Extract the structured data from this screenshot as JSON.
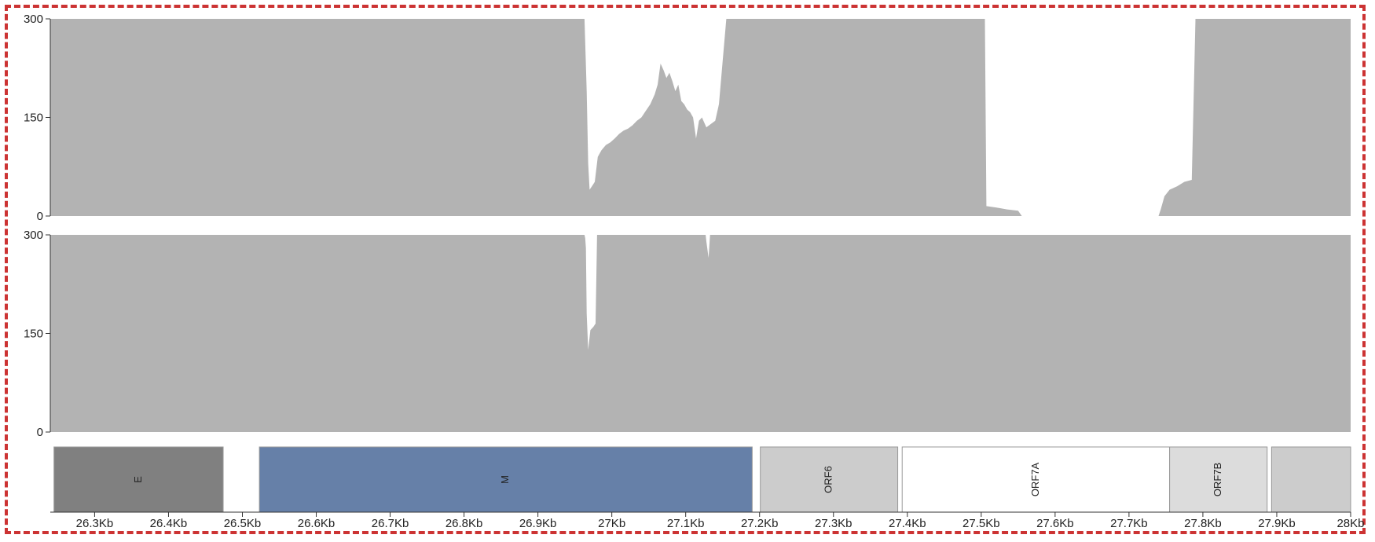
{
  "chart_data": {
    "type": "area",
    "x_range": [
      26240,
      28000
    ],
    "x_unit": "bp",
    "x_ticks": [
      {
        "value": 26300,
        "label": "26.3Kb"
      },
      {
        "value": 26400,
        "label": "26.4Kb"
      },
      {
        "value": 26500,
        "label": "26.5Kb"
      },
      {
        "value": 26600,
        "label": "26.6Kb"
      },
      {
        "value": 26700,
        "label": "26.7Kb"
      },
      {
        "value": 26800,
        "label": "26.8Kb"
      },
      {
        "value": 26900,
        "label": "26.9Kb"
      },
      {
        "value": 27000,
        "label": "27Kb"
      },
      {
        "value": 27100,
        "label": "27.1Kb"
      },
      {
        "value": 27200,
        "label": "27.2Kb"
      },
      {
        "value": 27300,
        "label": "27.3Kb"
      },
      {
        "value": 27400,
        "label": "27.4Kb"
      },
      {
        "value": 27500,
        "label": "27.5Kb"
      },
      {
        "value": 27600,
        "label": "27.6Kb"
      },
      {
        "value": 27700,
        "label": "27.7Kb"
      },
      {
        "value": 27800,
        "label": "27.8Kb"
      },
      {
        "value": 27900,
        "label": "27.9Kb"
      },
      {
        "value": 28000,
        "label": "28Kb"
      }
    ],
    "tracks": [
      {
        "ylim": [
          0,
          300
        ],
        "y_ticks": [
          {
            "value": 0,
            "label": "0"
          },
          {
            "value": 150,
            "label": "150"
          },
          {
            "value": 300,
            "label": "300"
          }
        ],
        "color": "#b3b3b3",
        "points": [
          [
            26240,
            300
          ],
          [
            26963,
            300
          ],
          [
            26966,
            190
          ],
          [
            26968,
            80
          ],
          [
            26970,
            40
          ],
          [
            26973,
            45
          ],
          [
            26977,
            52
          ],
          [
            26981,
            90
          ],
          [
            26986,
            100
          ],
          [
            26992,
            108
          ],
          [
            26998,
            112
          ],
          [
            27004,
            118
          ],
          [
            27010,
            125
          ],
          [
            27016,
            130
          ],
          [
            27022,
            133
          ],
          [
            27028,
            138
          ],
          [
            27034,
            145
          ],
          [
            27040,
            150
          ],
          [
            27046,
            160
          ],
          [
            27052,
            170
          ],
          [
            27058,
            185
          ],
          [
            27062,
            200
          ],
          [
            27066,
            232
          ],
          [
            27070,
            222
          ],
          [
            27074,
            210
          ],
          [
            27078,
            218
          ],
          [
            27082,
            205
          ],
          [
            27086,
            190
          ],
          [
            27090,
            200
          ],
          [
            27094,
            175
          ],
          [
            27098,
            170
          ],
          [
            27102,
            162
          ],
          [
            27106,
            158
          ],
          [
            27110,
            150
          ],
          [
            27114,
            118
          ],
          [
            27118,
            145
          ],
          [
            27122,
            150
          ],
          [
            27128,
            135
          ],
          [
            27134,
            140
          ],
          [
            27140,
            145
          ],
          [
            27145,
            170
          ],
          [
            27150,
            235
          ],
          [
            27155,
            300
          ],
          [
            27163,
            300
          ],
          [
            27505,
            300
          ],
          [
            27507,
            15
          ],
          [
            27520,
            13
          ],
          [
            27535,
            10
          ],
          [
            27550,
            8
          ],
          [
            27555,
            0
          ],
          [
            27740,
            0
          ],
          [
            27743,
            10
          ],
          [
            27748,
            30
          ],
          [
            27755,
            40
          ],
          [
            27765,
            45
          ],
          [
            27775,
            52
          ],
          [
            27785,
            55
          ],
          [
            27790,
            300
          ],
          [
            28000,
            300
          ]
        ]
      },
      {
        "ylim": [
          0,
          300
        ],
        "y_ticks": [
          {
            "value": 0,
            "label": "0"
          },
          {
            "value": 150,
            "label": "150"
          },
          {
            "value": 300,
            "label": "300"
          }
        ],
        "color": "#b3b3b3",
        "points": [
          [
            26240,
            300
          ],
          [
            26963,
            300
          ],
          [
            26964,
            295
          ],
          [
            26965,
            280
          ],
          [
            26966,
            180
          ],
          [
            26968,
            125
          ],
          [
            26971,
            155
          ],
          [
            26975,
            160
          ],
          [
            26978,
            165
          ],
          [
            26980,
            300
          ],
          [
            27127,
            300
          ],
          [
            27128,
            290
          ],
          [
            27131,
            265
          ],
          [
            27133,
            300
          ],
          [
            28000,
            300
          ]
        ]
      }
    ],
    "genes": [
      {
        "name": "E",
        "start": 26245,
        "end": 26474,
        "color": "#808080",
        "label_rotated": true
      },
      {
        "name": "M",
        "start": 26523,
        "end": 27190,
        "color": "#6680a8",
        "label_rotated": true
      },
      {
        "name": "ORF6",
        "start": 27201,
        "end": 27387,
        "color": "#cccccc",
        "label_rotated": true
      },
      {
        "name": "ORF7A",
        "start": 27393,
        "end": 27755,
        "color": "#ffffff",
        "label_rotated": true
      },
      {
        "name": "ORF7B",
        "start": 27755,
        "end": 27887,
        "color": "#dcdcdc",
        "label_rotated": true
      },
      {
        "name": "",
        "start": 27893,
        "end": 28000,
        "color": "#cccccc",
        "label_rotated": true
      }
    ]
  }
}
